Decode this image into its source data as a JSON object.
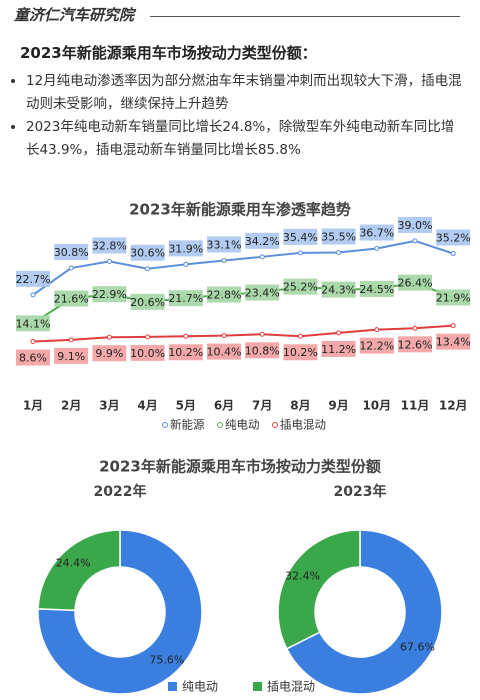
{
  "header": {
    "title": "童济仁汽车研究院"
  },
  "section": {
    "title": "2023年新能源乘用车市场按动力类型份额：",
    "bullets": [
      "12月纯电动渗透率因为部分燃油车年末销量冲刺而出现较大下滑，插电混动则未受影响，继续保持上升趋势",
      "2023年纯电动新车销量同比增长24.8%，除微型车外纯电动新车同比增长43.9%，插电混动新车销量同比增长85.8%"
    ]
  },
  "chart_data": [
    {
      "type": "line",
      "title": "2023年新能源乘用车渗透率趋势",
      "categories": [
        "1月",
        "2月",
        "3月",
        "4月",
        "5月",
        "6月",
        "7月",
        "8月",
        "9月",
        "10月",
        "11月",
        "12月"
      ],
      "ylim": [
        0,
        42
      ],
      "series": [
        {
          "name": "新能源",
          "color": "#5b8fd9",
          "label_color": "#a8c5f0",
          "values": [
            22.7,
            30.8,
            32.8,
            30.6,
            31.9,
            33.1,
            34.2,
            35.4,
            35.5,
            36.7,
            39.0,
            35.2
          ],
          "value_labels": [
            "22.7%",
            "30.8%",
            "32.8%",
            "30.6%",
            "31.9%",
            "33.1%",
            "34.2%",
            "35.4%",
            "35.5%",
            "36.7%",
            "39.0%",
            "35.2%"
          ]
        },
        {
          "name": "纯电动",
          "color": "#4caf50",
          "label_color": "#a3d6a3",
          "values": [
            14.1,
            21.6,
            22.9,
            20.6,
            21.7,
            22.8,
            23.4,
            25.2,
            24.3,
            24.5,
            26.4,
            21.9
          ],
          "value_labels": [
            "14.1%",
            "21.6%",
            "22.9%",
            "20.6%",
            "21.7%",
            "22.8%",
            "23.4%",
            "25.2%",
            "24.3%",
            "24.5%",
            "26.4%",
            "21.9%"
          ]
        },
        {
          "name": "插电混动",
          "color": "#e03c3c",
          "label_color": "#f2a0a0",
          "values": [
            8.6,
            9.1,
            9.9,
            10.0,
            10.2,
            10.4,
            10.8,
            10.2,
            11.2,
            12.2,
            12.6,
            13.4
          ],
          "value_labels": [
            "8.6%",
            "9.1%",
            "9.9%",
            "10.0%",
            "10.2%",
            "10.4%",
            "10.8%",
            "10.2%",
            "11.2%",
            "12.2%",
            "12.6%",
            "13.4%"
          ]
        }
      ]
    },
    {
      "type": "pie",
      "title": "2023年新能源乘用车市场按动力类型份额",
      "subtitle": "2022年",
      "categories": [
        "纯电动",
        "插电混动"
      ],
      "values": [
        75.6,
        24.4
      ],
      "value_labels": [
        "75.6%",
        "24.4%"
      ],
      "colors": [
        "#3a7fe0",
        "#3aa84a"
      ]
    },
    {
      "type": "pie",
      "subtitle": "2023年",
      "categories": [
        "纯电动",
        "插电混动"
      ],
      "values": [
        67.6,
        32.4
      ],
      "value_labels": [
        "67.6%",
        "32.4%"
      ],
      "colors": [
        "#3a7fe0",
        "#3aa84a"
      ]
    }
  ]
}
